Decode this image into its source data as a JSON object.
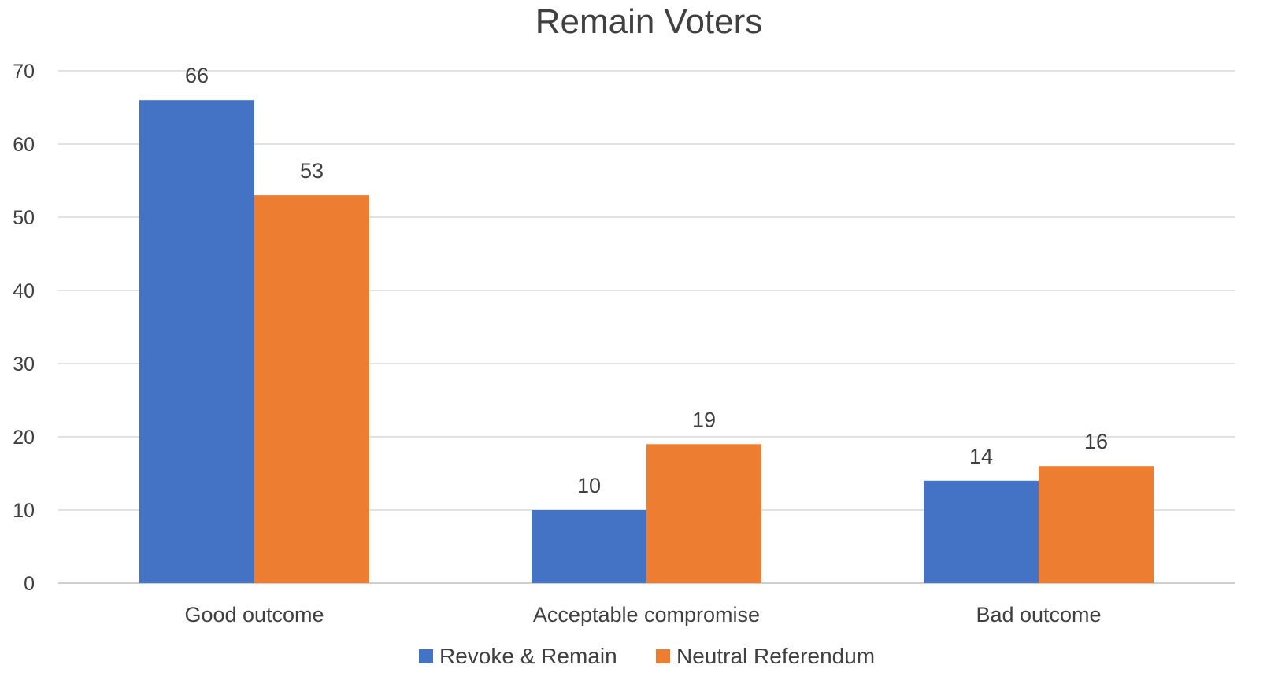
{
  "chart_data": {
    "type": "bar",
    "title": "Remain Voters",
    "xlabel": "",
    "ylabel": "",
    "categories": [
      "Good outcome",
      "Acceptable compromise",
      "Bad outcome"
    ],
    "series": [
      {
        "name": "Revoke & Remain",
        "values": [
          66,
          10,
          14
        ],
        "color": "#4472C4"
      },
      {
        "name": "Neutral Referendum",
        "values": [
          53,
          19,
          16
        ],
        "color": "#ED7D31"
      }
    ],
    "ylim": [
      0,
      70
    ],
    "yticks": [
      0,
      10,
      20,
      30,
      40,
      50,
      60,
      70
    ],
    "grid": true,
    "legend_position": "bottom",
    "data_labels": true
  }
}
